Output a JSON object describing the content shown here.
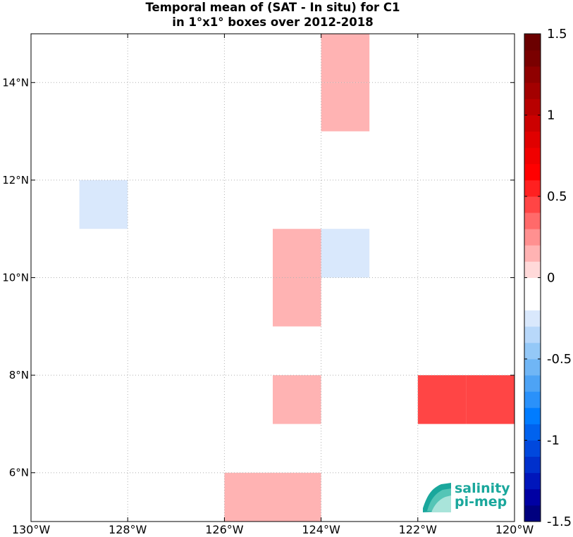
{
  "title": {
    "line1": "Temporal mean of (SAT - In situ) for C1",
    "line2": "in 1°x1° boxes over 2012-2018"
  },
  "logo": {
    "line1": "salinity",
    "line2": "pi-mep"
  },
  "chart_data": {
    "type": "heatmap",
    "x_axis": {
      "range": [
        -130,
        -120
      ],
      "ticks": [
        -130,
        -128,
        -126,
        -124,
        -122,
        -120
      ],
      "tick_labels": [
        "130°W",
        "128°W",
        "126°W",
        "124°W",
        "122°W",
        "120°W"
      ]
    },
    "y_axis": {
      "range": [
        5,
        15
      ],
      "ticks": [
        6,
        8,
        10,
        12,
        14
      ],
      "tick_labels": [
        "6°N",
        "8°N",
        "10°N",
        "12°N",
        "14°N"
      ]
    },
    "grid": true,
    "cell_size_deg": 1,
    "cells": [
      {
        "lon": -124,
        "lat": 14,
        "value": 0.15
      },
      {
        "lon": -124,
        "lat": 13,
        "value": 0.15
      },
      {
        "lon": -129,
        "lat": 11,
        "value": -0.25
      },
      {
        "lon": -128,
        "lat": 11,
        "value": -0.1
      },
      {
        "lon": -126,
        "lat": 11,
        "value": -0.1
      },
      {
        "lon": -125,
        "lat": 10,
        "value": 0.15
      },
      {
        "lon": -125,
        "lat": 9,
        "value": 0.15
      },
      {
        "lon": -124,
        "lat": 10,
        "value": -0.25
      },
      {
        "lon": -123,
        "lat": 9,
        "value": -0.1
      },
      {
        "lon": -125,
        "lat": 7,
        "value": 0.15
      },
      {
        "lon": -122,
        "lat": 7,
        "value": 0.4
      },
      {
        "lon": -121,
        "lat": 7,
        "value": 0.4
      },
      {
        "lon": -126,
        "lat": 5,
        "value": 0.15
      },
      {
        "lon": -125,
        "lat": 5,
        "value": 0.15
      }
    ],
    "colorbar": {
      "range": [
        -1.5,
        1.5
      ],
      "ticks": [
        -1.5,
        -1,
        -0.5,
        0,
        0.5,
        1,
        1.5
      ],
      "tick_labels": [
        "-1.5",
        "-1",
        "-0.5",
        "0",
        "0.5",
        "1",
        "1.5"
      ],
      "colors": [
        "#00007f",
        "#0000a3",
        "#0016bb",
        "#0030cc",
        "#0048dd",
        "#0062ee",
        "#007cff",
        "#2a91fa",
        "#4da3f5",
        "#70b6f5",
        "#94c8f7",
        "#b8d8fa",
        "#d9e8fc",
        "#ffffff",
        "#ffffff",
        "#ffd9d9",
        "#ffb3b3",
        "#ff9090",
        "#ff6a6a",
        "#ff4545",
        "#ff2020",
        "#ff0000",
        "#f00000",
        "#e00000",
        "#cc0000",
        "#b80000",
        "#a30000",
        "#8f0000",
        "#7a0000",
        "#6b0000"
      ]
    }
  }
}
